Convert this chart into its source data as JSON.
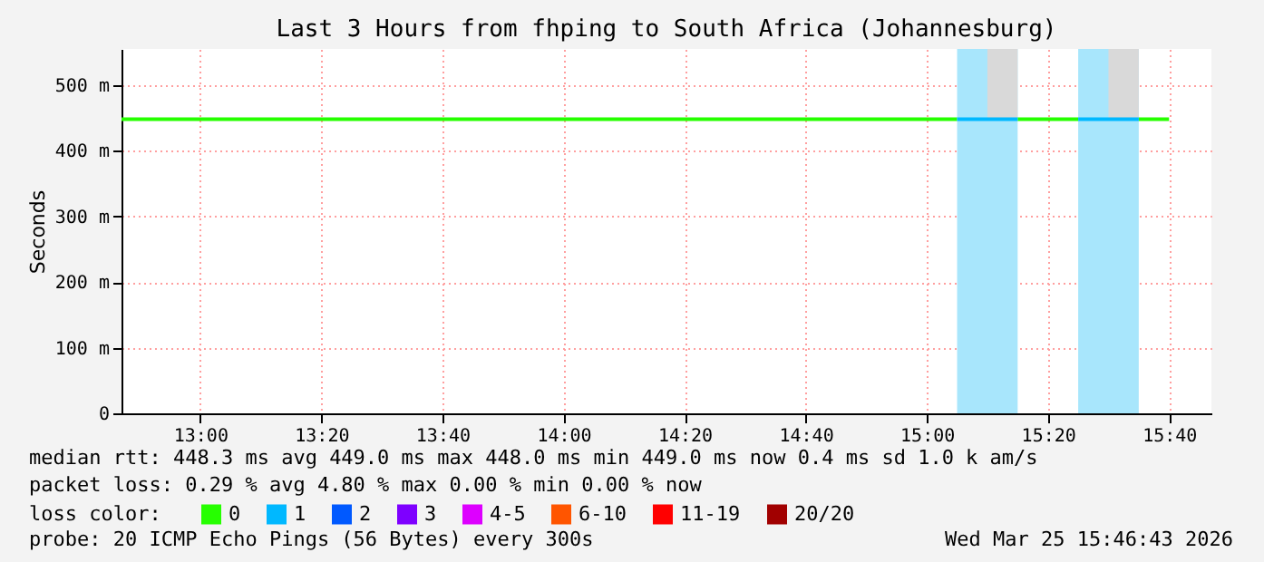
{
  "chart_data": {
    "type": "line",
    "title": "Last 3 Hours from fhping to South Africa (Johannesburg)",
    "ylabel": "Seconds",
    "xlim": [
      "2026-03-25T12:47",
      "2026-03-25T15:47"
    ],
    "xticks": [
      {
        "value": "2026-03-25T13:00",
        "label": "13:00"
      },
      {
        "value": "2026-03-25T13:20",
        "label": "13:20"
      },
      {
        "value": "2026-03-25T13:40",
        "label": "13:40"
      },
      {
        "value": "2026-03-25T14:00",
        "label": "14:00"
      },
      {
        "value": "2026-03-25T14:20",
        "label": "14:20"
      },
      {
        "value": "2026-03-25T14:40",
        "label": "14:40"
      },
      {
        "value": "2026-03-25T15:00",
        "label": "15:00"
      },
      {
        "value": "2026-03-25T15:20",
        "label": "15:20"
      },
      {
        "value": "2026-03-25T15:40",
        "label": "15:40"
      }
    ],
    "ylim": [
      0,
      555
    ],
    "yticks": [
      0,
      {
        "value": 100,
        "label": "100 m"
      },
      {
        "value": 200,
        "label": "200 m"
      },
      {
        "value": 300,
        "label": "300 m"
      },
      {
        "value": 400,
        "label": "400 m"
      },
      {
        "value": 500,
        "label": "500 m"
      }
    ],
    "grid": true,
    "legend": "bottom",
    "legend_title": "loss color:",
    "series": [
      {
        "name": "0",
        "color": "#26ff00",
        "x": [
          "2026-03-25T12:47",
          "2026-03-25T15:05",
          "2026-03-25T15:10",
          "2026-03-25T15:15",
          "2026-03-25T15:25",
          "2026-03-25T15:30",
          "2026-03-25T15:35",
          "2026-03-25T15:40"
        ],
        "values": [
          448,
          448,
          null,
          448,
          448,
          null,
          448,
          448
        ]
      },
      {
        "name": "1",
        "color": "#00b8ff",
        "x": [
          "2026-03-25T15:05",
          "2026-03-25T15:10",
          "2026-03-25T15:15",
          "2026-03-25T15:20",
          "2026-03-25T15:25",
          "2026-03-25T15:30",
          "2026-03-25T15:35"
        ],
        "values": [
          448,
          448,
          448,
          null,
          448,
          448,
          448
        ],
        "lower": [
          448,
          448,
          448,
          null,
          448,
          448,
          448
        ],
        "upper": [
          448,
          555,
          555,
          null,
          448,
          555,
          555
        ]
      },
      {
        "name": "2",
        "color": "#0059ff"
      },
      {
        "name": "3",
        "color": "#7e00ff"
      },
      {
        "name": "4-5",
        "color": "#dd00ff"
      },
      {
        "name": "6-10",
        "color": "#ff5500"
      },
      {
        "name": "11-19",
        "color": "#ff0000"
      },
      {
        "name": "20/20",
        "color": "#a10000"
      }
    ],
    "bands": [
      {
        "axis": "x",
        "from": "2026-03-25T15:05",
        "to": "2026-03-25T15:15",
        "color": "#a8e6fc"
      },
      {
        "axis": "x",
        "from": "2026-03-25T15:25",
        "to": "2026-03-25T15:35",
        "color": "#a8e6fc"
      }
    ],
    "annotations": [
      "median rtt: 448.3 ms avg 449.0 ms max 448.0 ms min 449.0 ms now 0.4 ms sd 1.0 k am/s",
      "packet loss: 0.29 % avg 4.80 % max 0.00 % min 0.00 % now",
      "probe: 20 ICMP Echo Pings (56 Bytes) every 300s",
      "Wed Mar 25 15:46:43 2026"
    ]
  }
}
